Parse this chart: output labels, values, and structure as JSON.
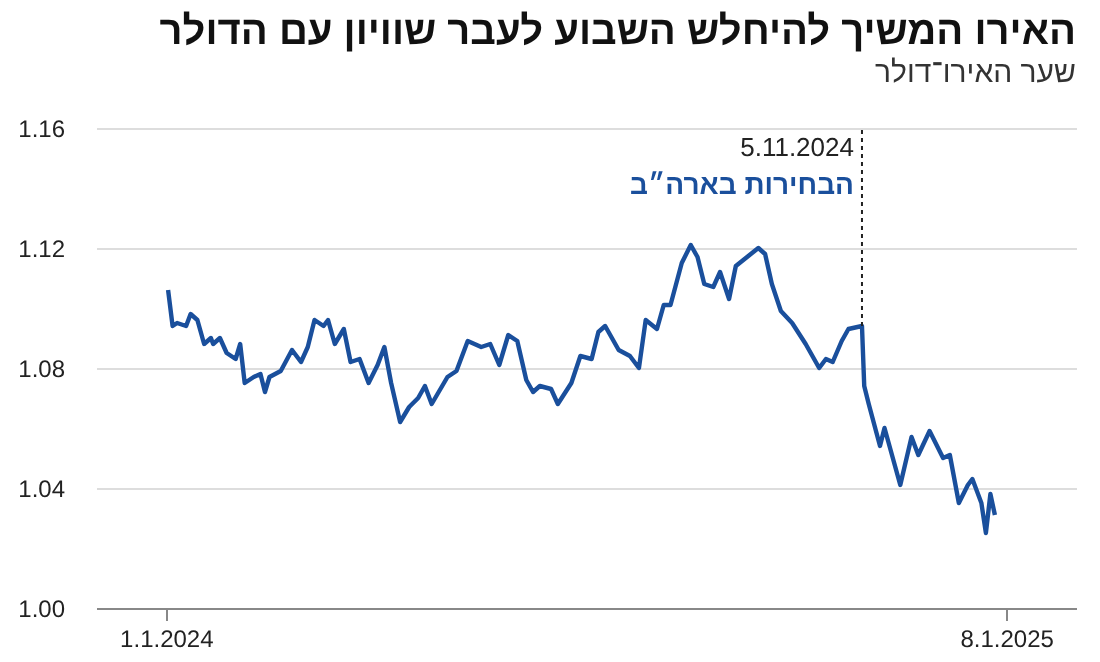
{
  "chart_data": {
    "type": "line",
    "title": "האירו המשיך להיחלש השבוע לעבר שוויון עם הדולר",
    "subtitle": "שער האירו־דולר",
    "x": [
      "2024-01-02",
      "2024-01-04",
      "2024-01-06",
      "2024-01-10",
      "2024-01-12",
      "2024-01-15",
      "2024-01-18",
      "2024-01-21",
      "2024-01-22",
      "2024-01-25",
      "2024-01-28",
      "2024-02-01",
      "2024-02-03",
      "2024-02-05",
      "2024-02-09",
      "2024-02-12",
      "2024-02-14",
      "2024-02-16",
      "2024-02-21",
      "2024-02-26",
      "2024-03-01",
      "2024-03-04",
      "2024-03-07",
      "2024-03-11",
      "2024-03-13",
      "2024-03-16",
      "2024-03-20",
      "2024-03-23",
      "2024-03-27",
      "2024-03-31",
      "2024-04-04",
      "2024-04-07",
      "2024-04-10",
      "2024-04-14",
      "2024-04-18",
      "2024-04-22",
      "2024-04-25",
      "2024-04-28",
      "2024-05-05",
      "2024-05-09",
      "2024-05-14",
      "2024-05-20",
      "2024-05-24",
      "2024-05-28",
      "2024-06-01",
      "2024-06-05",
      "2024-06-09",
      "2024-06-12",
      "2024-06-15",
      "2024-06-20",
      "2024-06-23",
      "2024-06-29",
      "2024-07-03",
      "2024-07-08",
      "2024-07-11",
      "2024-07-14",
      "2024-07-20",
      "2024-07-25",
      "2024-07-29",
      "2024-08-01",
      "2024-08-06",
      "2024-08-09",
      "2024-08-12",
      "2024-08-17",
      "2024-08-21",
      "2024-08-24",
      "2024-08-27",
      "2024-08-31",
      "2024-09-03",
      "2024-09-07",
      "2024-09-10",
      "2024-09-15",
      "2024-09-20",
      "2024-09-23",
      "2024-09-26",
      "2024-09-30",
      "2024-10-05",
      "2024-10-11",
      "2024-10-17",
      "2024-10-20",
      "2024-10-23",
      "2024-10-27",
      "2024-10-30",
      "2024-11-05",
      "2024-11-06",
      "2024-11-08",
      "2024-11-13",
      "2024-11-15",
      "2024-11-22",
      "2024-11-27",
      "2024-11-30",
      "2024-12-05",
      "2024-12-11",
      "2024-12-14",
      "2024-12-18",
      "2024-12-22",
      "2024-12-24",
      "2024-12-28",
      "2024-12-30",
      "2025-01-01",
      "2025-01-03"
    ],
    "series": [
      {
        "color": "#1a4f9c",
        "values": [
          1.106,
          1.094,
          1.095,
          1.094,
          1.098,
          1.096,
          1.088,
          1.09,
          1.088,
          1.09,
          1.085,
          1.083,
          1.088,
          1.075,
          1.077,
          1.078,
          1.072,
          1.077,
          1.079,
          1.086,
          1.082,
          1.087,
          1.096,
          1.094,
          1.096,
          1.088,
          1.093,
          1.082,
          1.083,
          1.075,
          1.081,
          1.087,
          1.075,
          1.062,
          1.067,
          1.07,
          1.074,
          1.068,
          1.077,
          1.079,
          1.089,
          1.087,
          1.088,
          1.081,
          1.091,
          1.089,
          1.076,
          1.072,
          1.074,
          1.073,
          1.068,
          1.075,
          1.084,
          1.083,
          1.092,
          1.094,
          1.086,
          1.084,
          1.08,
          1.096,
          1.093,
          1.101,
          1.101,
          1.115,
          1.121,
          1.117,
          1.108,
          1.107,
          1.112,
          1.103,
          1.114,
          1.117,
          1.12,
          1.118,
          1.108,
          1.099,
          1.095,
          1.088,
          1.08,
          1.083,
          1.082,
          1.089,
          1.093,
          1.094,
          1.074,
          1.068,
          1.054,
          1.06,
          1.041,
          1.057,
          1.051,
          1.059,
          1.05,
          1.051,
          1.035,
          1.041,
          1.043,
          1.035,
          1.025,
          1.038,
          1.031
        ]
      }
    ],
    "xlim": [
      "2023-12-01",
      "2025-02-08"
    ],
    "xticks": [
      {
        "value": "2024-01-01",
        "label": "1.1.2024"
      },
      {
        "value": "2025-01-08",
        "label": "8.1.2025"
      }
    ],
    "ylim": [
      1.0,
      1.16
    ],
    "yticks": [
      {
        "value": 1.0,
        "label": "1.00"
      },
      {
        "value": 1.04,
        "label": "1.04"
      },
      {
        "value": 1.08,
        "label": "1.08"
      },
      {
        "value": 1.12,
        "label": "1.12"
      },
      {
        "value": 1.16,
        "label": "1.16"
      }
    ],
    "grid": "y",
    "ref_lines": [
      {
        "axis": "x",
        "value": "2024-11-05",
        "label": "5.11.2024",
        "line_style": "dotted",
        "color": "#222222"
      }
    ],
    "annotations": [
      "הבחירות בארה״ב"
    ]
  }
}
